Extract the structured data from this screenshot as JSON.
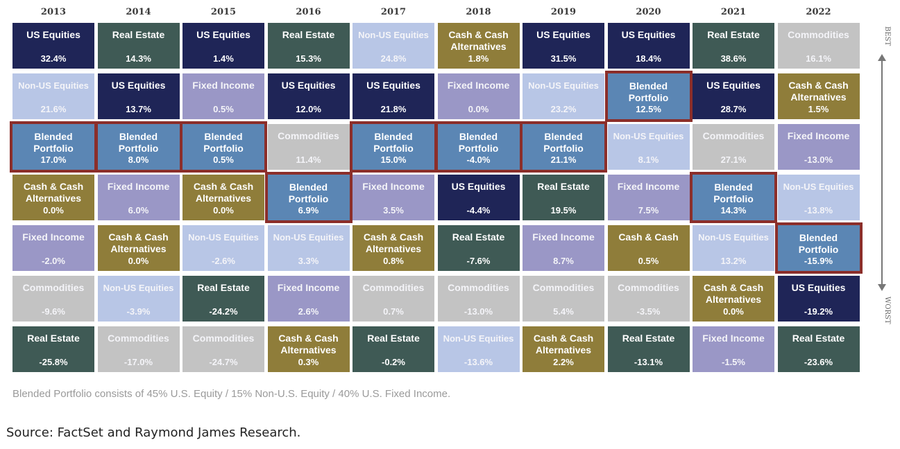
{
  "chart_data": {
    "type": "table",
    "years": [
      "2013",
      "2014",
      "2015",
      "2016",
      "2017",
      "2018",
      "2019",
      "2020",
      "2021",
      "2022"
    ],
    "axis_top_label": "BEST",
    "axis_bottom_label": "WORST",
    "columns": [
      [
        {
          "name": "US Equities",
          "value": "32.4%"
        },
        {
          "name": "Non-US Equities",
          "value": "21.6%"
        },
        {
          "name": "Blended Portfolio",
          "value": "17.0%"
        },
        {
          "name": "Cash & Cash Alternatives",
          "value": "0.0%"
        },
        {
          "name": "Fixed Income",
          "value": "-2.0%"
        },
        {
          "name": "Commodities",
          "value": "-9.6%"
        },
        {
          "name": "Real Estate",
          "value": "-25.8%"
        }
      ],
      [
        {
          "name": "Real Estate",
          "value": "14.3%"
        },
        {
          "name": "US Equities",
          "value": "13.7%"
        },
        {
          "name": "Blended Portfolio",
          "value": "8.0%"
        },
        {
          "name": "Fixed Income",
          "value": "6.0%"
        },
        {
          "name": "Cash & Cash Alternatives",
          "value": "0.0%"
        },
        {
          "name": "Non-US Equities",
          "value": "-3.9%"
        },
        {
          "name": "Commodities",
          "value": "-17.0%"
        }
      ],
      [
        {
          "name": "US Equities",
          "value": "1.4%"
        },
        {
          "name": "Fixed Income",
          "value": "0.5%"
        },
        {
          "name": "Blended Portfolio",
          "value": "0.5%"
        },
        {
          "name": "Cash & Cash Alternatives",
          "value": "0.0%"
        },
        {
          "name": "Non-US Equities",
          "value": "-2.6%"
        },
        {
          "name": "Real Estate",
          "value": "-24.2%"
        },
        {
          "name": "Commodities",
          "value": "-24.7%"
        }
      ],
      [
        {
          "name": "Real Estate",
          "value": "15.3%"
        },
        {
          "name": "US Equities",
          "value": "12.0%"
        },
        {
          "name": "Commodities",
          "value": "11.4%"
        },
        {
          "name": "Blended Portfolio",
          "value": "6.9%"
        },
        {
          "name": "Non-US Equities",
          "value": "3.3%"
        },
        {
          "name": "Fixed Income",
          "value": "2.6%"
        },
        {
          "name": "Cash & Cash Alternatives",
          "value": "0.3%"
        }
      ],
      [
        {
          "name": "Non-US Equities",
          "value": "24.8%"
        },
        {
          "name": "US Equities",
          "value": "21.8%"
        },
        {
          "name": "Blended Portfolio",
          "value": "15.0%"
        },
        {
          "name": "Fixed Income",
          "value": "3.5%"
        },
        {
          "name": "Cash & Cash Alternatives",
          "value": "0.8%"
        },
        {
          "name": "Commodities",
          "value": "0.7%"
        },
        {
          "name": "Real Estate",
          "value": "-0.2%"
        }
      ],
      [
        {
          "name": "Cash & Cash Alternatives",
          "value": "1.8%"
        },
        {
          "name": "Fixed Income",
          "value": "0.0%"
        },
        {
          "name": "Blended Portfolio",
          "value": "-4.0%"
        },
        {
          "name": "US Equities",
          "value": "-4.4%"
        },
        {
          "name": "Real Estate",
          "value": "-7.6%"
        },
        {
          "name": "Commodities",
          "value": "-13.0%"
        },
        {
          "name": "Non-US Equities",
          "value": "-13.6%"
        }
      ],
      [
        {
          "name": "US Equities",
          "value": "31.5%"
        },
        {
          "name": "Non-US Equities",
          "value": "23.2%"
        },
        {
          "name": "Blended Portfolio",
          "value": "21.1%"
        },
        {
          "name": "Real Estate",
          "value": "19.5%"
        },
        {
          "name": "Fixed Income",
          "value": "8.7%"
        },
        {
          "name": "Commodities",
          "value": "5.4%"
        },
        {
          "name": "Cash & Cash Alternatives",
          "value": "2.2%"
        }
      ],
      [
        {
          "name": "US Equities",
          "value": "18.4%"
        },
        {
          "name": "Blended Portfolio",
          "value": "12.5%"
        },
        {
          "name": "Non-US Equities",
          "value": "8.1%"
        },
        {
          "name": "Fixed Income",
          "value": "7.5%"
        },
        {
          "name": "Cash & Cash",
          "value": "0.5%"
        },
        {
          "name": "Commodities",
          "value": "-3.5%"
        },
        {
          "name": "Real Estate",
          "value": "-13.1%"
        }
      ],
      [
        {
          "name": "Real Estate",
          "value": "38.6%"
        },
        {
          "name": "US Equities",
          "value": "28.7%"
        },
        {
          "name": "Commodities",
          "value": "27.1%"
        },
        {
          "name": "Blended Portfolio",
          "value": "14.3%"
        },
        {
          "name": "Non-US Equities",
          "value": "13.2%"
        },
        {
          "name": "Cash & Cash Alternatives",
          "value": "0.0%"
        },
        {
          "name": "Fixed Income",
          "value": "-1.5%"
        }
      ],
      [
        {
          "name": "Commodities",
          "value": "16.1%"
        },
        {
          "name": "Cash & Cash Alternatives",
          "value": "1.5%"
        },
        {
          "name": "Fixed Income",
          "value": "-13.0%"
        },
        {
          "name": "Non-US Equities",
          "value": "-13.8%"
        },
        {
          "name": "Blended Portfolio",
          "value": "-15.9%"
        },
        {
          "name": "US Equities",
          "value": "-19.2%"
        },
        {
          "name": "Real Estate",
          "value": "-23.6%"
        }
      ]
    ],
    "colors": {
      "US Equities": "#1f2557",
      "Real Estate": "#3f5a55",
      "Non-US Equities": "#b8c6e6",
      "Cash & Cash Alternatives": "#8f7d3a",
      "Cash & Cash": "#8f7d3a",
      "Fixed Income": "#9a97c6",
      "Commodities": "#c3c3c3",
      "Blended Portfolio": "#5b86b4",
      "highlight_border": "#8b2e2a"
    },
    "highlight_series": "Blended Portfolio"
  },
  "footnote": "Blended Portfolio consists of 45% U.S. Equity / 15% Non-U.S. Equity / 40% U.S. Fixed Income.",
  "source": "Source: FactSet and Raymond James Research."
}
